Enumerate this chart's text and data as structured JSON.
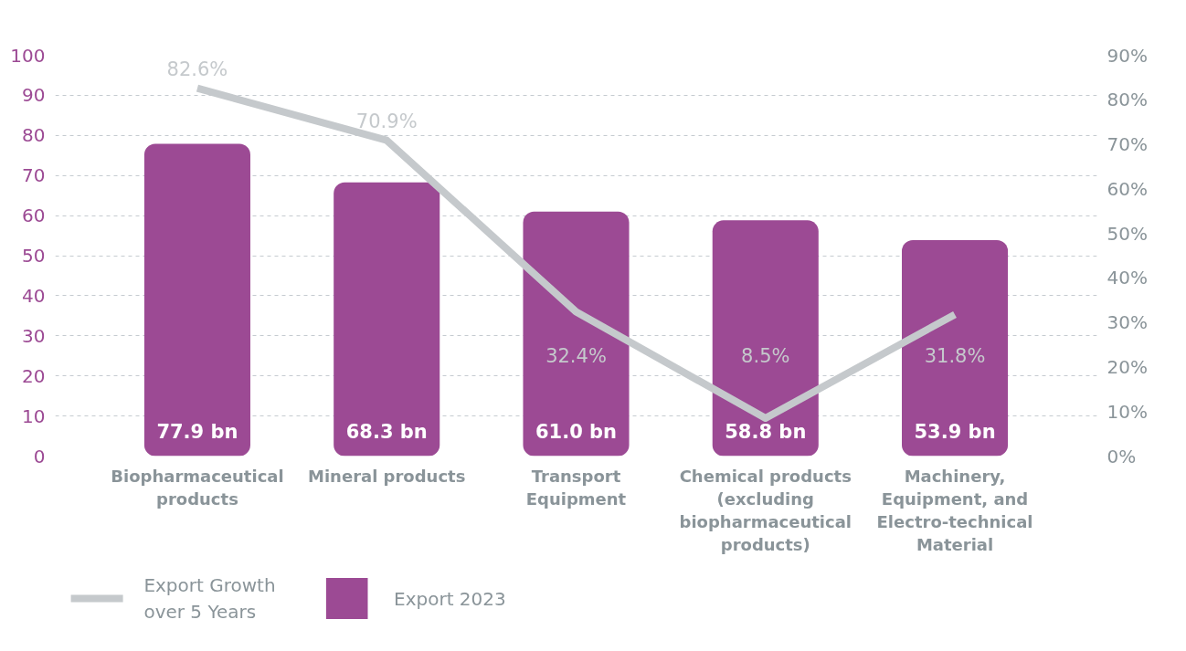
{
  "chart_data": {
    "type": "bar",
    "categories": [
      "Biopharmaceutical products",
      "Mineral products",
      "Transport Equipment",
      "Chemical products (excluding biopharmaceutical products)",
      "Machinery, Equipment, and Electro-technical Material"
    ],
    "series": [
      {
        "name": "Export 2023",
        "type": "bar",
        "color": "#9c4a94",
        "values": [
          77.9,
          68.3,
          61.0,
          58.8,
          53.9
        ],
        "value_labels": [
          "77.9 bn",
          "68.3 bn",
          "61.0 bn",
          "58.8 bn",
          "53.9 bn"
        ]
      },
      {
        "name": "Export Growth over 5 Years",
        "type": "line",
        "axis": "y2",
        "color": "#c5c9cc",
        "values": [
          82.6,
          70.9,
          32.4,
          8.5,
          31.8
        ],
        "value_labels": [
          "82.6%",
          "70.9%",
          "32.4%",
          "8.5%",
          "31.8%"
        ]
      }
    ],
    "ylim": [
      0,
      100
    ],
    "yticks": [
      0,
      10,
      20,
      30,
      40,
      50,
      60,
      70,
      80,
      90,
      100
    ],
    "y2lim": [
      0,
      90
    ],
    "y2ticks": [
      {
        "value": 0,
        "label": "0%"
      },
      {
        "value": 10,
        "label": "10%"
      },
      {
        "value": 20,
        "label": "20%"
      },
      {
        "value": 30,
        "label": "30%"
      },
      {
        "value": 40,
        "label": "40%"
      },
      {
        "value": 50,
        "label": "50%"
      },
      {
        "value": 60,
        "label": "60%"
      },
      {
        "value": 70,
        "label": "70%"
      },
      {
        "value": 80,
        "label": "80%"
      },
      {
        "value": 90,
        "label": "90%"
      }
    ],
    "grid": "y",
    "legend": "bottom left"
  }
}
